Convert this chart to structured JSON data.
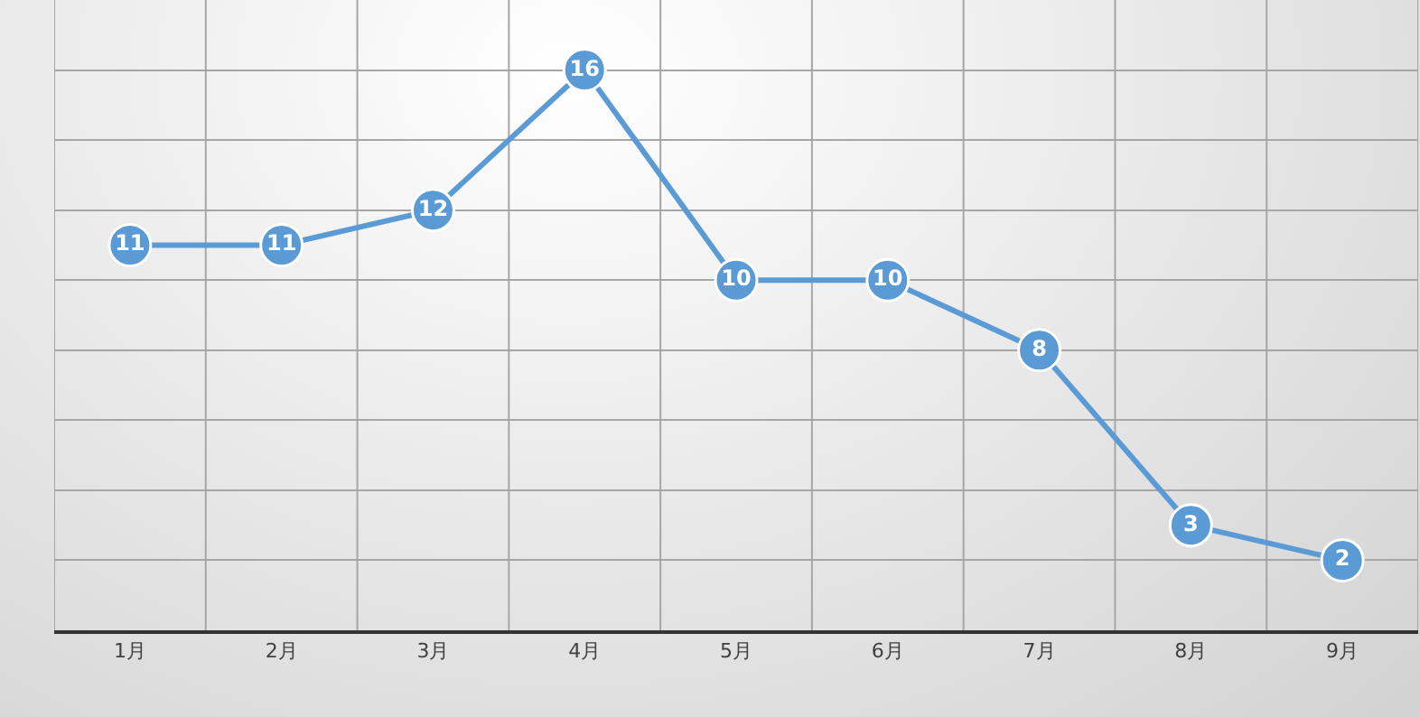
{
  "chart_data": {
    "type": "line",
    "categories": [
      "1月",
      "2月",
      "3月",
      "4月",
      "5月",
      "6月",
      "7月",
      "8月",
      "9月"
    ],
    "series": [
      {
        "color": "#5b9bd5",
        "values": [
          11,
          11,
          12,
          16,
          10,
          10,
          8,
          3,
          2
        ]
      }
    ],
    "ylim": [
      0,
      18
    ],
    "yticks": [
      {
        "value": 0,
        "label": null
      },
      {
        "value": 2,
        "label": null
      },
      {
        "value": 4,
        "label": null
      },
      {
        "value": 6,
        "label": null
      },
      {
        "value": 8,
        "label": null
      },
      {
        "value": 10,
        "label": null
      },
      {
        "value": 12,
        "label": null
      },
      {
        "value": 14,
        "label": null
      },
      {
        "value": 16,
        "label": null
      }
    ],
    "tick_labels": "x",
    "grid": true,
    "marker": "circle",
    "line_style": "solid",
    "data_labels": true
  }
}
